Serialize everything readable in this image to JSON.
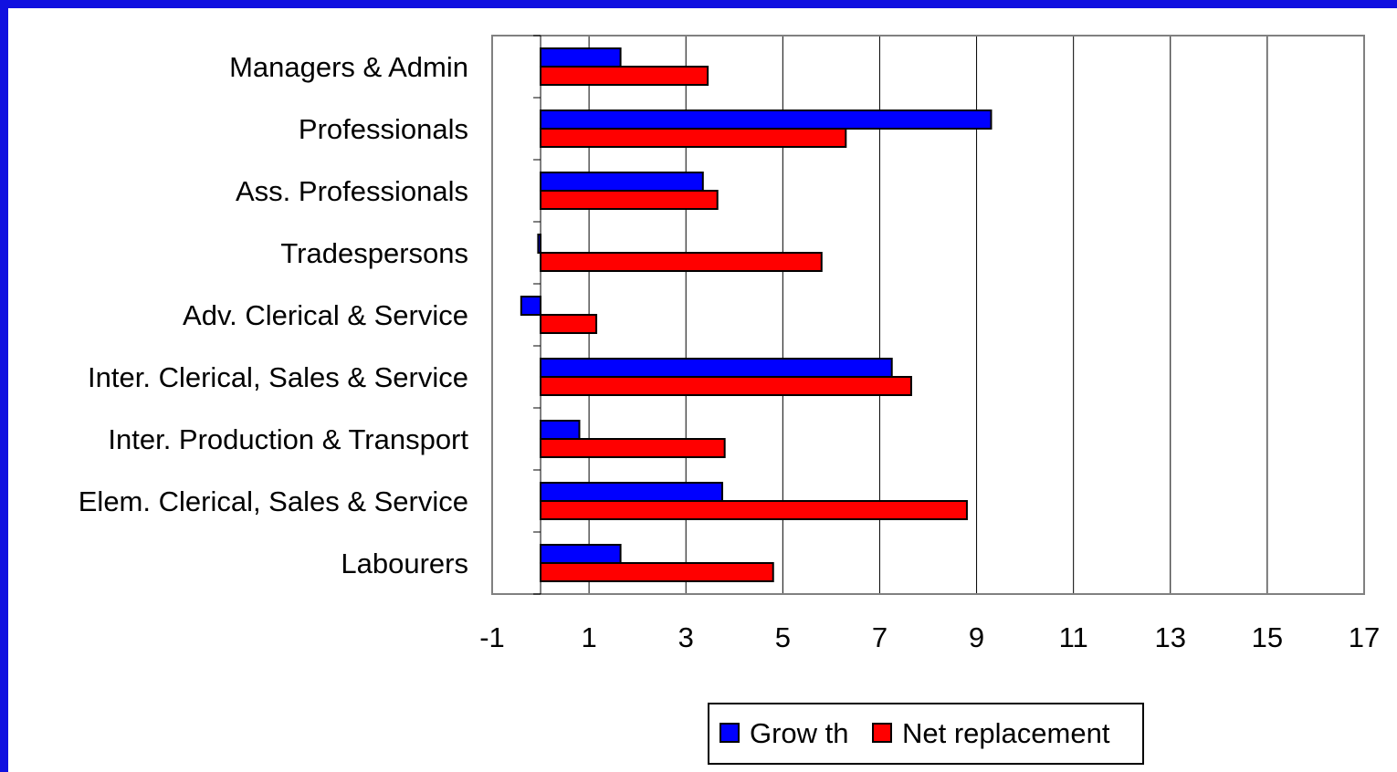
{
  "chart_data": {
    "type": "bar",
    "orientation": "horizontal",
    "categories": [
      "Managers & Admin",
      "Professionals",
      "Ass. Professionals",
      "Tradespersons",
      "Adv. Clerical & Service",
      "Inter. Clerical, Sales & Service",
      "Inter. Production & Transport",
      "Elem. Clerical, Sales & Service",
      "Labourers"
    ],
    "series": [
      {
        "name": "Grow th",
        "color": "#0000ff",
        "values": [
          1.65,
          9.3,
          3.35,
          -0.05,
          -0.4,
          7.25,
          0.8,
          3.75,
          1.65
        ]
      },
      {
        "name": "Net replacement",
        "color": "#ff0000",
        "values": [
          3.45,
          6.3,
          3.65,
          5.8,
          1.15,
          7.65,
          3.8,
          8.8,
          4.8
        ]
      }
    ],
    "xlim": [
      -1,
      17
    ],
    "xticks": [
      "-1",
      "1",
      "3",
      "5",
      "7",
      "9",
      "11",
      "13",
      "15",
      "17"
    ],
    "title": "",
    "xlabel": "",
    "ylabel": "",
    "grid": "vertical",
    "legend": "bottom"
  }
}
